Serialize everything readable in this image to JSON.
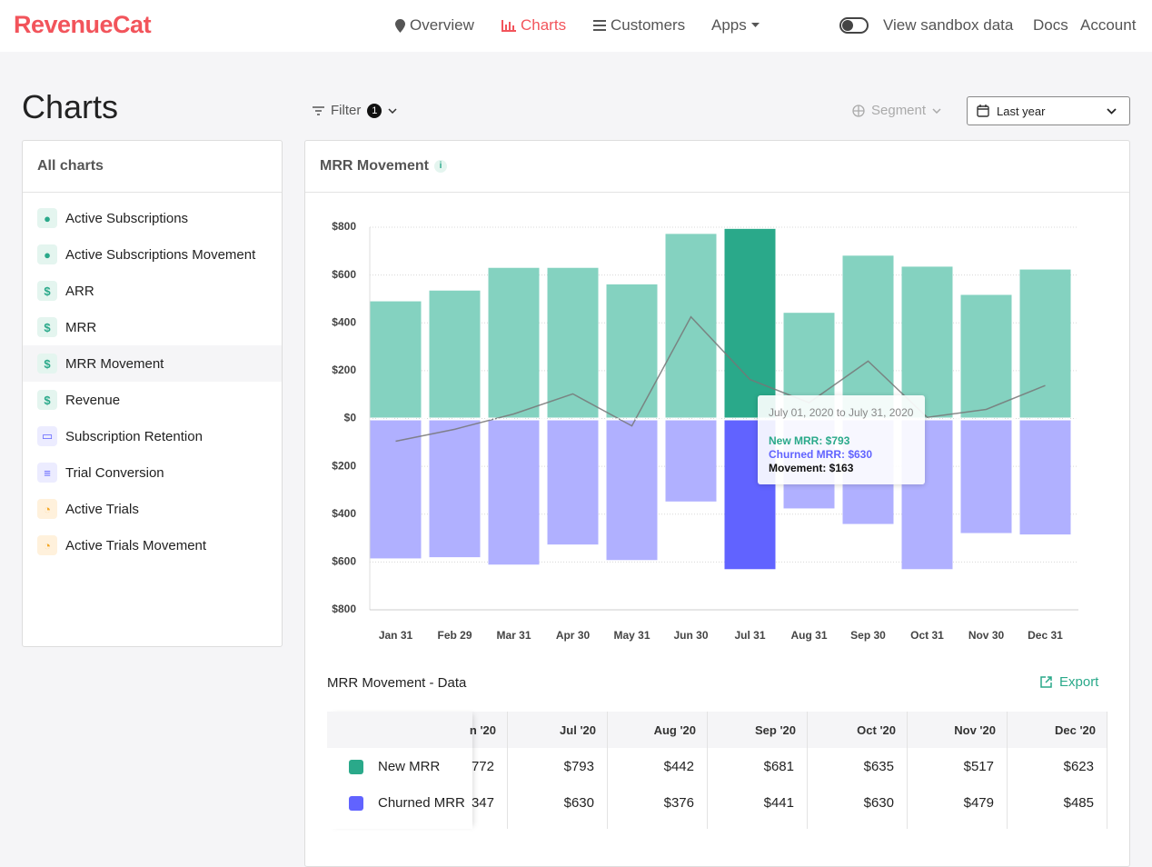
{
  "nav": {
    "logo": "RevenueCat",
    "links": [
      "Overview",
      "Charts",
      "Customers",
      "Apps"
    ],
    "sandbox": "View sandbox data",
    "docs": "Docs",
    "account": "Account"
  },
  "page_title": "Charts",
  "toolbar": {
    "filter": "Filter",
    "filter_count": 1,
    "segment": "Segment",
    "range": "Last year"
  },
  "sidebar": {
    "title": "All charts",
    "items": [
      "Active Subscriptions",
      "Active Subscriptions Movement",
      "ARR",
      "MRR",
      "MRR Movement",
      "Revenue",
      "Subscription Retention",
      "Trial Conversion",
      "Active Trials",
      "Active Trials Movement"
    ]
  },
  "chart_data": {
    "type": "bar",
    "title": "MRR Movement",
    "categories": [
      "Jan 31",
      "Feb 29",
      "Mar 31",
      "Apr 30",
      "May 31",
      "Jun 30",
      "Jul 31",
      "Aug 31",
      "Sep 30",
      "Oct 31",
      "Nov 30",
      "Dec 31"
    ],
    "series": [
      {
        "name": "New MRR",
        "color": "#84d2c0",
        "highlight_color": "#2aa98a",
        "values": [
          490,
          535,
          630,
          630,
          561,
          772,
          793,
          442,
          681,
          635,
          517,
          623
        ]
      },
      {
        "name": "Churned MRR",
        "color": "#b0b0ff",
        "highlight_color": "#6163ff",
        "values": [
          -585,
          -580,
          -611,
          -527,
          -592,
          -347,
          -630,
          -376,
          -441,
          -630,
          -479,
          -485
        ]
      },
      {
        "name": "Movement",
        "type": "line",
        "color": "#777777",
        "values": [
          -95,
          -45,
          19,
          103,
          -31,
          425,
          163,
          66,
          240,
          5,
          38,
          138
        ]
      }
    ],
    "highlight_index": 6,
    "ylim": [
      -800,
      800
    ],
    "yticks": [
      {
        "value": -800,
        "label": "$800"
      },
      {
        "value": -600,
        "label": "$600"
      },
      {
        "value": -400,
        "label": "$400"
      },
      {
        "value": -200,
        "label": "$200"
      },
      {
        "value": 0,
        "label": "$0"
      },
      {
        "value": 200,
        "label": "$200"
      },
      {
        "value": 400,
        "label": "$400"
      },
      {
        "value": 600,
        "label": "$600"
      },
      {
        "value": 800,
        "label": "$800"
      }
    ],
    "grid": true,
    "tooltip": {
      "range": "July 01, 2020 to July 31, 2020",
      "lines": [
        "New MRR: $793",
        "Churned MRR: $630",
        "Movement: $163"
      ]
    }
  },
  "data_table": {
    "title": "MRR Movement - Data",
    "export": "Export",
    "columns": [
      "n '20",
      "Jul '20",
      "Aug '20",
      "Sep '20",
      "Oct '20",
      "Nov '20",
      "Dec '20"
    ],
    "rows": [
      {
        "name": "New MRR",
        "color": "#2aa98a",
        "values": [
          "772",
          "$793",
          "$442",
          "$681",
          "$635",
          "$517",
          "$623"
        ]
      },
      {
        "name": "Churned MRR",
        "color": "#6163ff",
        "values": [
          "347",
          "$630",
          "$376",
          "$441",
          "$630",
          "$479",
          "$485"
        ]
      }
    ]
  }
}
